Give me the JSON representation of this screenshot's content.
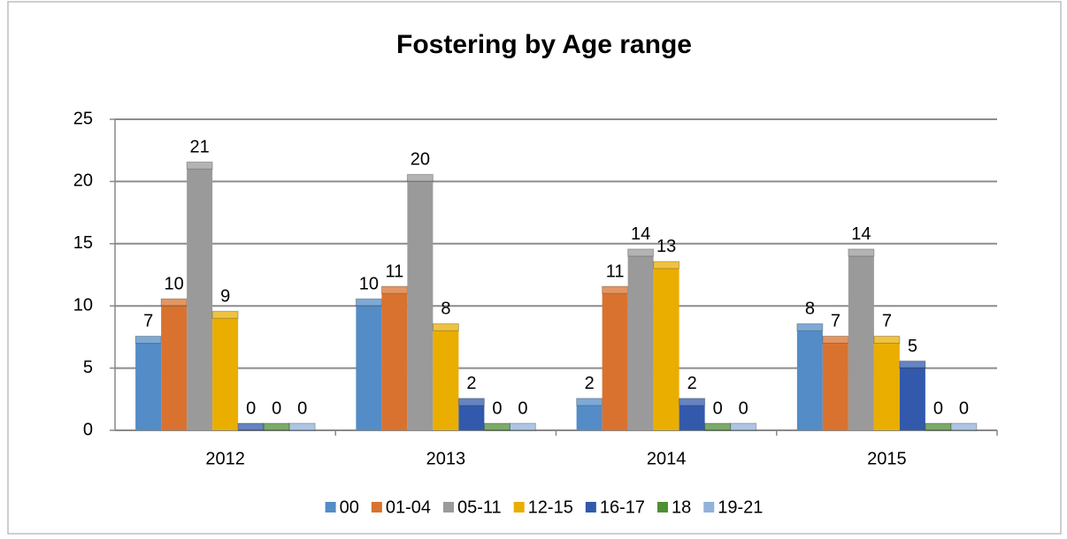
{
  "chart_data": {
    "type": "bar",
    "title": "Fostering by Age range",
    "categories": [
      "2012",
      "2013",
      "2014",
      "2015"
    ],
    "series": [
      {
        "name": "00",
        "color": "#538cc6",
        "values": [
          7,
          10,
          2,
          8
        ]
      },
      {
        "name": "01-04",
        "color": "#d9722f",
        "values": [
          10,
          11,
          11,
          7
        ]
      },
      {
        "name": "05-11",
        "color": "#9a9a9a",
        "values": [
          21,
          20,
          14,
          14
        ]
      },
      {
        "name": "12-15",
        "color": "#eaae00",
        "values": [
          9,
          8,
          13,
          7
        ]
      },
      {
        "name": "16-17",
        "color": "#3259ab",
        "values": [
          0,
          2,
          2,
          5
        ]
      },
      {
        "name": "18",
        "color": "#4f8f34",
        "values": [
          0,
          0,
          0,
          0
        ]
      },
      {
        "name": "19-21",
        "color": "#92b1db",
        "values": [
          0,
          0,
          0,
          0
        ]
      }
    ],
    "ylim": [
      0,
      25
    ],
    "yticks": [
      0,
      5,
      10,
      15,
      20,
      25
    ],
    "grid": true,
    "legend": "bottom"
  }
}
